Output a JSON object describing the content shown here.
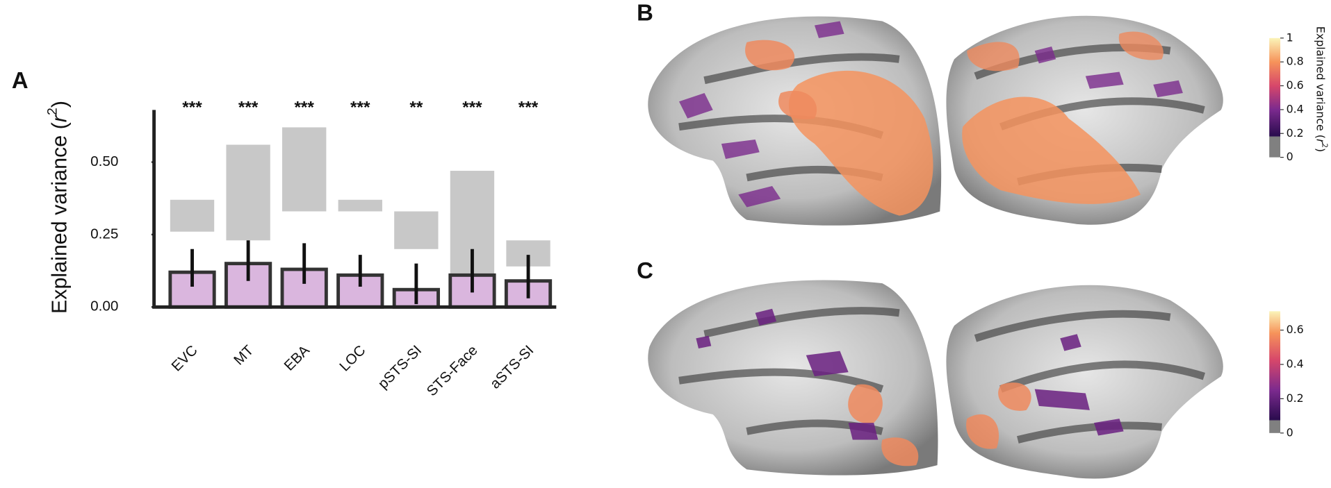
{
  "chart_data": [
    {
      "type": "bar",
      "panel": "A",
      "ylabel": [
        "Explained variance (",
        "r",
        "2",
        ")"
      ],
      "categories": [
        "EVC",
        "MT",
        "EBA",
        "LOC",
        "pSTS-SI",
        "STS-Face",
        "aSTS-SI"
      ],
      "values": [
        0.12,
        0.15,
        0.13,
        0.11,
        0.06,
        0.11,
        0.09
      ],
      "error_low": [
        0.07,
        0.09,
        0.08,
        0.07,
        0.01,
        0.05,
        0.03
      ],
      "error_high": [
        0.2,
        0.23,
        0.22,
        0.18,
        0.15,
        0.2,
        0.18
      ],
      "ceiling_low": [
        0.26,
        0.23,
        0.33,
        0.33,
        0.2,
        0.11,
        0.14
      ],
      "ceiling_high": [
        0.37,
        0.56,
        0.62,
        0.37,
        0.33,
        0.47,
        0.23
      ],
      "significance": [
        "***",
        "***",
        "***",
        "***",
        "**",
        "***",
        "***"
      ],
      "color": "#dab6de",
      "ceiling_color": "#c8c8c8",
      "ylim": [
        0,
        0.68
      ],
      "yticks": [
        {
          "value": 0,
          "label": "0.00"
        },
        {
          "value": 0.25,
          "label": "0.25"
        },
        {
          "value": 0.5,
          "label": "0.50"
        }
      ]
    },
    {
      "type": "colorbar",
      "panel": "B",
      "label": [
        "Explained variance (",
        "r",
        "2",
        ")"
      ],
      "ylim": [
        0,
        1
      ],
      "yticks": [
        0,
        0.2,
        0.4,
        0.6,
        0.8,
        1
      ]
    },
    {
      "type": "colorbar",
      "panel": "C",
      "ylim": [
        0,
        0.71
      ],
      "yticks": [
        0,
        0.2,
        0.4,
        0.6
      ]
    }
  ]
}
